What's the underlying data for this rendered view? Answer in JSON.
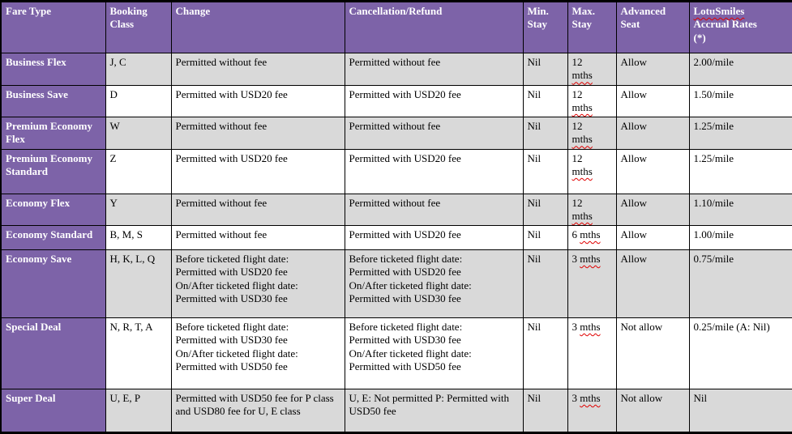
{
  "colors": {
    "header_bg": "#7D63A8",
    "fare_column_bg": "#7D63A8",
    "alt_row_bg": "#D9D9D9",
    "border": "#000000",
    "header_text": "#FFFFFF",
    "spellcheck_underline": "#E00000"
  },
  "spellcheck_words": [
    "LotuSmiles",
    "mths"
  ],
  "table": {
    "columns": [
      {
        "key": "fare_type",
        "label": "Fare Type"
      },
      {
        "key": "booking_class",
        "label": "Booking Class"
      },
      {
        "key": "change",
        "label": "Change"
      },
      {
        "key": "cancellation_refund",
        "label": "Cancellation/Refund"
      },
      {
        "key": "min_stay",
        "label": "Min. Stay"
      },
      {
        "key": "max_stay",
        "label": "Max. Stay"
      },
      {
        "key": "advanced_seat",
        "label": "Advanced Seat"
      },
      {
        "key": "accrual_rate",
        "label": "LotuSmiles Accrual Rates (*)"
      }
    ],
    "rows": [
      {
        "fare_type": "Business Flex",
        "booking_class": "J, C",
        "change": "Permitted without fee",
        "cancellation_refund": "Permitted without fee",
        "min_stay": "Nil",
        "max_stay": "12 mths",
        "advanced_seat": "Allow",
        "accrual_rate": "2.00/mile"
      },
      {
        "fare_type": "Business Save",
        "booking_class": "D",
        "change": "Permitted with USD20 fee",
        "cancellation_refund": "Permitted with USD20 fee",
        "min_stay": "Nil",
        "max_stay": "12 mths",
        "advanced_seat": "Allow",
        "accrual_rate": "1.50/mile"
      },
      {
        "fare_type": "Premium Economy Flex",
        "booking_class": "W",
        "change": "Permitted without fee",
        "cancellation_refund": "Permitted without fee",
        "min_stay": "Nil",
        "max_stay": "12 mths",
        "advanced_seat": "Allow",
        "accrual_rate": "1.25/mile"
      },
      {
        "fare_type": "Premium Economy Standard",
        "booking_class": "Z",
        "change": "Permitted with USD20 fee",
        "cancellation_refund": "Permitted with USD20 fee",
        "min_stay": "Nil",
        "max_stay": "12 mths",
        "advanced_seat": "Allow",
        "accrual_rate": "1.25/mile"
      },
      {
        "fare_type": "Economy Flex",
        "booking_class": "Y",
        "change": "Permitted without fee",
        "cancellation_refund": "Permitted without fee",
        "min_stay": "Nil",
        "max_stay": "12 mths",
        "advanced_seat": "Allow",
        "accrual_rate": "1.10/mile"
      },
      {
        "fare_type": "Economy Standard",
        "booking_class": "B, M, S",
        "change": "Permitted without fee",
        "cancellation_refund": "Permitted with USD20 fee",
        "min_stay": "Nil",
        "max_stay": "6 mths",
        "advanced_seat": "Allow",
        "accrual_rate": "1.00/mile"
      },
      {
        "fare_type": "Economy Save",
        "booking_class": "H, K, L, Q",
        "change": "Before ticketed flight date:\nPermitted with USD20 fee\nOn/After ticketed flight date:\nPermitted with USD30 fee",
        "cancellation_refund": "Before ticketed flight date:\nPermitted with USD20 fee\nOn/After ticketed flight date:\nPermitted with USD30 fee",
        "min_stay": "Nil",
        "max_stay": "3 mths",
        "advanced_seat": "Allow",
        "accrual_rate": "0.75/mile"
      },
      {
        "fare_type": "Special Deal",
        "booking_class": "N, R, T, A",
        "change": "Before ticketed flight date:\nPermitted with USD30 fee\nOn/After ticketed flight date:\nPermitted with USD50 fee",
        "cancellation_refund": "Before ticketed flight date:\nPermitted with USD30 fee\nOn/After ticketed flight date:\nPermitted with USD50 fee",
        "min_stay": "Nil",
        "max_stay": "3 mths",
        "advanced_seat": "Not allow",
        "accrual_rate": "0.25/mile (A: Nil)"
      },
      {
        "fare_type": "Super Deal",
        "booking_class": "U, E, P",
        "change": "Permitted with USD50 fee for P class and USD80 fee for U, E class",
        "cancellation_refund": "U, E: Not permitted P: Permitted with USD50 fee",
        "min_stay": "Nil",
        "max_stay": "3 mths",
        "advanced_seat": "Not allow",
        "accrual_rate": "Nil"
      }
    ]
  }
}
